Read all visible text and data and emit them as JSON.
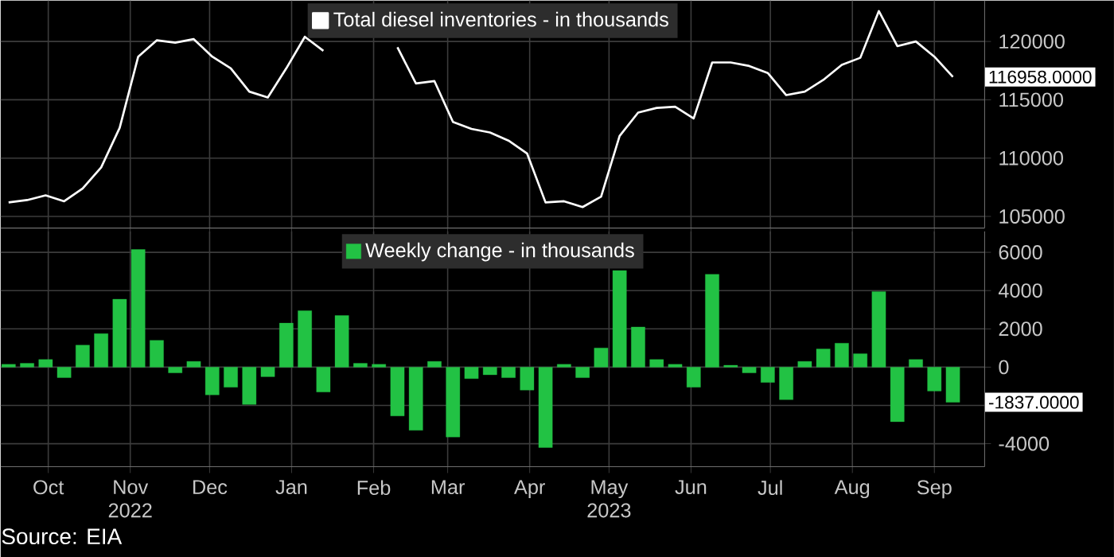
{
  "chart_data": [
    {
      "type": "line",
      "xlim": [
        "2022-09-13",
        "2023-09-20"
      ],
      "ylim": [
        104000,
        123500
      ],
      "x": [
        "2022-09-16",
        "2022-09-23",
        "2022-09-30",
        "2022-10-07",
        "2022-10-14",
        "2022-10-21",
        "2022-10-28",
        "2022-11-04",
        "2022-11-11",
        "2022-11-18",
        "2022-11-25",
        "2022-12-02",
        "2022-12-09",
        "2022-12-16",
        "2022-12-23",
        "2022-12-30",
        "2023-01-06",
        "2023-01-13",
        "2023-01-20",
        "2023-01-27",
        "2023-02-03",
        "2023-02-10",
        "2023-02-17",
        "2023-02-24",
        "2023-03-03",
        "2023-03-10",
        "2023-03-17",
        "2023-03-24",
        "2023-03-31",
        "2023-04-07",
        "2023-04-14",
        "2023-04-21",
        "2023-04-28",
        "2023-05-05",
        "2023-05-12",
        "2023-05-19",
        "2023-05-26",
        "2023-06-02",
        "2023-06-09",
        "2023-06-16",
        "2023-06-23",
        "2023-06-30",
        "2023-07-07",
        "2023-07-14",
        "2023-07-21",
        "2023-07-28",
        "2023-08-04",
        "2023-08-11",
        "2023-08-18",
        "2023-08-25",
        "2023-09-01",
        "2023-09-08"
      ],
      "series": [
        {
          "name": "Total diesel inventories - in thousands",
          "color": "#ffffff",
          "values": [
            106200,
            106400,
            106800,
            106300,
            107400,
            109200,
            112600,
            118700,
            120100,
            119900,
            120200,
            118700,
            117700,
            115700,
            115200,
            117700,
            120400,
            119200,
            null,
            null,
            null,
            119500,
            116400,
            116600,
            113100,
            112500,
            112200,
            111500,
            110400,
            106200,
            106300,
            105800,
            106700,
            111900,
            113900,
            114300,
            114400,
            113400,
            118200,
            118200,
            117900,
            117300,
            115400,
            115700,
            116700,
            118000,
            118600,
            122600,
            119600,
            120000,
            118700,
            116958
          ]
        }
      ],
      "xticks": [
        {
          "value": "2022-10-01",
          "label": null
        },
        {
          "value": "2022-11-01",
          "label": null
        },
        {
          "value": "2022-12-01",
          "label": null
        },
        {
          "value": "2023-01-01",
          "label": null
        },
        {
          "value": "2023-02-01",
          "label": null
        },
        {
          "value": "2023-03-01",
          "label": null
        },
        {
          "value": "2023-04-01",
          "label": null
        },
        {
          "value": "2023-05-01",
          "label": null
        },
        {
          "value": "2023-06-01",
          "label": null
        },
        {
          "value": "2023-07-01",
          "label": null
        },
        {
          "value": "2023-08-01",
          "label": null
        },
        {
          "value": "2023-09-01",
          "label": null
        }
      ],
      "yticks": [
        105000,
        110000,
        115000,
        120000
      ],
      "tick_labels": "y",
      "grid": true,
      "legend": "top",
      "annotations": [
        {
          "text": "116958.0000",
          "x": "2023-09-08",
          "y": 116958
        }
      ]
    },
    {
      "type": "bar",
      "xlim": [
        "2022-09-13",
        "2023-09-20"
      ],
      "ylim": [
        -5200,
        7100
      ],
      "x": [
        "2022-09-16",
        "2022-09-23",
        "2022-09-30",
        "2022-10-07",
        "2022-10-14",
        "2022-10-21",
        "2022-10-28",
        "2022-11-04",
        "2022-11-11",
        "2022-11-18",
        "2022-11-25",
        "2022-12-02",
        "2022-12-09",
        "2022-12-16",
        "2022-12-23",
        "2022-12-30",
        "2023-01-06",
        "2023-01-13",
        "2023-01-20",
        "2023-01-27",
        "2023-02-03",
        "2023-02-10",
        "2023-02-17",
        "2023-02-24",
        "2023-03-03",
        "2023-03-10",
        "2023-03-17",
        "2023-03-24",
        "2023-03-31",
        "2023-04-07",
        "2023-04-14",
        "2023-04-21",
        "2023-04-28",
        "2023-05-05",
        "2023-05-12",
        "2023-05-19",
        "2023-05-26",
        "2023-06-02",
        "2023-06-09",
        "2023-06-16",
        "2023-06-23",
        "2023-06-30",
        "2023-07-07",
        "2023-07-14",
        "2023-07-21",
        "2023-07-28",
        "2023-08-04",
        "2023-08-11",
        "2023-08-18",
        "2023-08-25",
        "2023-09-01",
        "2023-09-08"
      ],
      "series": [
        {
          "name": "Weekly change - in thousands",
          "color": "#22c244",
          "values": [
            150,
            200,
            400,
            -550,
            1150,
            1750,
            3550,
            6150,
            1400,
            -300,
            300,
            -1450,
            -1050,
            -1950,
            -500,
            2300,
            2950,
            -1300,
            2700,
            200,
            150,
            -2550,
            -3300,
            300,
            -3650,
            -600,
            -400,
            -550,
            -1200,
            -4200,
            150,
            -550,
            1000,
            5050,
            2100,
            400,
            150,
            -1050,
            4850,
            100,
            -300,
            -800,
            -1700,
            300,
            950,
            1250,
            700,
            3950,
            -2850,
            400,
            -1250,
            -1837
          ]
        }
      ],
      "xticks": [
        {
          "value": "2022-10-01",
          "label": "Oct"
        },
        {
          "value": "2022-11-01",
          "label": "Nov 2022"
        },
        {
          "value": "2022-12-01",
          "label": "Dec"
        },
        {
          "value": "2023-01-01",
          "label": "Jan"
        },
        {
          "value": "2023-02-01",
          "label": "Feb"
        },
        {
          "value": "2023-03-01",
          "label": "Mar"
        },
        {
          "value": "2023-04-01",
          "label": "Apr"
        },
        {
          "value": "2023-05-01",
          "label": "May 2023"
        },
        {
          "value": "2023-06-01",
          "label": "Jun"
        },
        {
          "value": "2023-07-01",
          "label": "Jul"
        },
        {
          "value": "2023-08-01",
          "label": "Aug"
        },
        {
          "value": "2023-09-01",
          "label": "Sep"
        }
      ],
      "yticks": [
        -4000,
        {
          "value": -2000,
          "label": null
        },
        0,
        2000,
        4000,
        6000
      ],
      "grid": true,
      "legend": "top",
      "annotations": [
        {
          "text": "-1837.0000",
          "x": "2023-09-08",
          "y": -1837
        },
        "Source: EIA"
      ]
    }
  ]
}
